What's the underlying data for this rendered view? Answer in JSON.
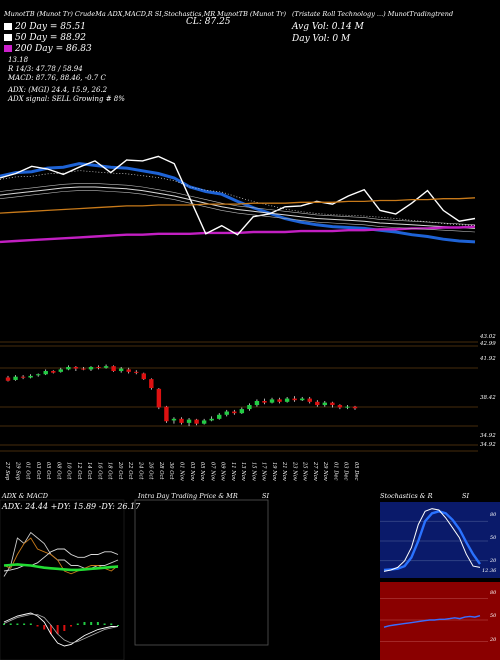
{
  "header": {
    "top_line": "MunotTB (Munot Tr) CrudeMa ADX,MACD,R SI,Stochastics,MR  MunotTB (Munot Tr)",
    "close_label": "CL: 87.25",
    "title_right": "(Tristate  Roll Technology  ...) MunotTradingtrend",
    "legend": [
      {
        "label": "20  Day = 85.51",
        "color": "#ffffff"
      },
      {
        "label": "50  Day = 88.92",
        "color": "#ffffff"
      },
      {
        "label": "200  Day = 86.83",
        "color": "#cc22cc"
      }
    ],
    "stats": [
      "13.18",
      "R  14/3: 47.78  / 58.94",
      "MACD: 87.76,  88.46,  -0.7 C"
    ],
    "adx_line": "ADX:                         (MGI) 24.4,  15.9,  26.2",
    "signal_line": "ADX  signal: SELL Growing # 8%",
    "avg_vol": "Avg Vol: 0.14   M",
    "day_vol": "Day Vol: 0    M"
  },
  "price_levels": [
    "43.02",
    "42.99",
    "41.92",
    "38.42",
    "34.92",
    "34.92"
  ],
  "date_labels": [
    "27 Sep",
    "29 Sep",
    "01 Oct",
    "03 Oct",
    "05 Oct",
    "08 Oct",
    "10 Oct",
    "12 Oct",
    "14 Oct",
    "16 Oct",
    "18 Oct",
    "20 Oct",
    "22 Oct",
    "24 Oct",
    "26 Oct",
    "28 Oct",
    "30 Oct",
    "01 Nov",
    "03 Nov",
    "05 Nov",
    "07 Nov",
    "09 Nov",
    "11 Nov",
    "13 Nov",
    "15 Nov",
    "17 Nov",
    "19 Nov",
    "21 Nov",
    "23 Nov",
    "25 Nov",
    "27 Nov",
    "29 Nov",
    "01 Dec",
    "03 Dec",
    "05 Dec"
  ],
  "panels": {
    "adx_title": "ADX  & MACD",
    "adx_readout": "ADX: 24.44  +DY: 15.89  -DY: 26.17",
    "intra_title": "Intra  Day Trading Price  & MR",
    "si_title": "SI",
    "stoch_title": "Stochastics & R",
    "si2_title": "SI",
    "stoch_ticks": [
      "80",
      "50",
      "20"
    ],
    "stoch_value": "12.36",
    "rsi_ticks": [
      "80",
      "50",
      "20"
    ]
  },
  "chart_data": [
    {
      "type": "line",
      "title": "Moving averages and price",
      "series": [
        {
          "name": "20 Day",
          "values": [
            3.2,
            3.6,
            3.7,
            4.1,
            4.2,
            4.6,
            4.4,
            4.2,
            4.1,
            3.8,
            3.5,
            3.0,
            2.0,
            1.5,
            1.2,
            0.4,
            -0.3,
            -0.9,
            -1.5,
            -1.9,
            -2.2,
            -2.4,
            -2.5,
            -2.6,
            -2.8,
            -3.0,
            -3.3,
            -3.5,
            -3.8,
            -4.0,
            -4.1
          ]
        },
        {
          "name": "50 Day",
          "values": [
            1.1,
            1.3,
            1.5,
            1.7,
            1.9,
            2.0,
            2.0,
            1.9,
            1.8,
            1.6,
            1.3,
            1.0,
            0.6,
            0.2,
            -0.2,
            -0.5,
            -0.7,
            -0.9,
            -1.1,
            -1.3,
            -1.5,
            -1.6,
            -1.7,
            -1.8,
            -2.0,
            -2.1,
            -2.2,
            -2.3,
            -2.4,
            -2.5,
            -2.6
          ]
        },
        {
          "name": "200 Day",
          "values": [
            -4.1,
            -4.0,
            -3.9,
            -3.8,
            -3.7,
            -3.6,
            -3.5,
            -3.4,
            -3.3,
            -3.3,
            -3.2,
            -3.2,
            -3.2,
            -3.1,
            -3.1,
            -3.1,
            -3.0,
            -3.0,
            -3.0,
            -2.9,
            -2.9,
            -2.9,
            -2.8,
            -2.8,
            -2.7,
            -2.7,
            -2.6,
            -2.6,
            -2.5,
            -2.5,
            -2.4
          ]
        },
        {
          "name": "Price",
          "values": [
            3.0,
            3.5,
            4.3,
            4.0,
            3.4,
            4.2,
            4.9,
            3.6,
            5.0,
            4.9,
            5.4,
            4.6,
            0.7,
            -3.2,
            -2.3,
            -3.3,
            -1.3,
            -1.0,
            -0.2,
            -0.1,
            0.4,
            0.1,
            1.0,
            1.7,
            -0.6,
            -1.0,
            0.2,
            1.6,
            -0.6,
            -1.8,
            -1.5
          ]
        }
      ]
    },
    {
      "type": "bar",
      "title": "Candles",
      "candles": [
        [
          41.5,
          41.1,
          41.7,
          41.0
        ],
        [
          41.2,
          41.6,
          41.8,
          41.1
        ],
        [
          41.6,
          41.5,
          41.8,
          41.3
        ],
        [
          41.5,
          41.7,
          41.9,
          41.4
        ],
        [
          41.8,
          41.9,
          42.0,
          41.6
        ],
        [
          41.9,
          42.3,
          42.5,
          41.8
        ],
        [
          42.3,
          42.1,
          42.4,
          42.0
        ],
        [
          42.2,
          42.5,
          42.7,
          42.1
        ],
        [
          42.5,
          42.8,
          43.0,
          42.4
        ],
        [
          42.8,
          42.6,
          42.9,
          42.3
        ],
        [
          42.6,
          42.5,
          42.8,
          42.4
        ],
        [
          42.5,
          42.8,
          42.9,
          42.3
        ],
        [
          42.8,
          42.7,
          43.0,
          42.5
        ],
        [
          42.7,
          42.9,
          43.1,
          42.6
        ],
        [
          42.9,
          42.3,
          43.0,
          42.2
        ],
        [
          42.3,
          42.6,
          42.8,
          42.1
        ],
        [
          42.5,
          42.2,
          42.7,
          42.0
        ],
        [
          42.2,
          42.1,
          42.4,
          41.9
        ],
        [
          42.0,
          41.3,
          42.1,
          41.2
        ],
        [
          41.3,
          40.2,
          41.4,
          40.0
        ],
        [
          40.1,
          37.8,
          40.2,
          37.6
        ],
        [
          37.9,
          36.1,
          38.0,
          35.9
        ],
        [
          36.2,
          36.4,
          36.6,
          35.8
        ],
        [
          36.4,
          35.9,
          36.6,
          35.7
        ],
        [
          35.9,
          36.3,
          36.5,
          35.5
        ],
        [
          36.3,
          35.8,
          36.4,
          35.6
        ],
        [
          35.8,
          36.2,
          36.4,
          35.7
        ],
        [
          36.2,
          36.4,
          36.7,
          36.1
        ],
        [
          36.4,
          36.9,
          37.1,
          36.3
        ],
        [
          36.9,
          37.3,
          37.5,
          36.7
        ],
        [
          37.3,
          37.1,
          37.5,
          36.9
        ],
        [
          37.1,
          37.6,
          37.8,
          37.0
        ],
        [
          37.6,
          38.1,
          38.3,
          37.4
        ],
        [
          38.1,
          38.6,
          38.8,
          37.9
        ],
        [
          38.6,
          38.4,
          38.9,
          38.2
        ],
        [
          38.4,
          38.8,
          39.0,
          38.3
        ],
        [
          38.8,
          38.5,
          39.0,
          38.3
        ],
        [
          38.5,
          38.9,
          39.1,
          38.4
        ],
        [
          38.9,
          38.7,
          39.2,
          38.5
        ],
        [
          38.7,
          38.9,
          39.1,
          38.6
        ],
        [
          38.9,
          38.5,
          39.1,
          38.3
        ],
        [
          38.5,
          38.1,
          38.7,
          37.9
        ],
        [
          38.1,
          38.4,
          38.6,
          37.9
        ],
        [
          38.4,
          38.1,
          38.5,
          37.8
        ],
        [
          38.1,
          37.8,
          38.2,
          37.6
        ],
        [
          37.8,
          37.9,
          38.1,
          37.6
        ],
        [
          37.9,
          37.7,
          38.0,
          37.5
        ]
      ]
    },
    {
      "type": "line",
      "title": "ADX",
      "series": [
        {
          "name": "ADX",
          "values": [
            0.1,
            0.3,
            0.8,
            0.7,
            0.9,
            0.8,
            0.7,
            0.5,
            0.4,
            0.4,
            0.3,
            0.3,
            0.25,
            0.25,
            0.3,
            0.3,
            0.35,
            0.4
          ]
        },
        {
          "name": "+DY",
          "values": [
            0.3,
            0.25,
            0.5,
            0.7,
            0.8,
            0.6,
            0.55,
            0.5,
            0.4,
            0.2,
            0.15,
            0.2,
            0.25,
            0.3,
            0.3,
            0.25,
            0.2,
            0.3
          ]
        },
        {
          "name": "-DY",
          "values": [
            0.2,
            0.22,
            0.25,
            0.3,
            0.3,
            0.35,
            0.45,
            0.55,
            0.6,
            0.6,
            0.5,
            0.45,
            0.45,
            0.5,
            0.5,
            0.55,
            0.55,
            0.5
          ]
        }
      ]
    },
    {
      "type": "line",
      "title": "MACD",
      "series": [
        {
          "name": "MACD",
          "values": [
            0.1,
            0.2,
            0.3,
            0.35,
            0.4,
            0.3,
            0.1,
            -0.3,
            -0.6,
            -0.7,
            -0.65,
            -0.5,
            -0.35,
            -0.25,
            -0.15,
            -0.1,
            -0.05,
            -0.05
          ]
        },
        {
          "name": "Signal",
          "values": [
            0.05,
            0.15,
            0.25,
            0.3,
            0.35,
            0.35,
            0.25,
            0.0,
            -0.3,
            -0.5,
            -0.6,
            -0.55,
            -0.45,
            -0.35,
            -0.25,
            -0.15,
            -0.1,
            -0.05
          ]
        },
        {
          "name": "Histogram",
          "values": [
            0.05,
            0.05,
            0.05,
            0.05,
            0.05,
            -0.05,
            -0.15,
            -0.3,
            -0.3,
            -0.2,
            -0.05,
            0.05,
            0.1,
            0.1,
            0.1,
            0.05,
            0.05,
            0.0
          ]
        }
      ]
    },
    {
      "type": "line",
      "title": "Stochastics",
      "ylim": [
        0,
        100
      ],
      "series": [
        {
          "name": "%K",
          "values": [
            4,
            6,
            10,
            20,
            40,
            75,
            95,
            99,
            97,
            85,
            70,
            55,
            30,
            12,
            10
          ]
        },
        {
          "name": "%D",
          "values": [
            6,
            7,
            8,
            12,
            25,
            50,
            80,
            92,
            95,
            92,
            82,
            68,
            48,
            30,
            15
          ]
        }
      ]
    },
    {
      "type": "line",
      "title": "RSI",
      "ylim": [
        0,
        100
      ],
      "series": [
        {
          "name": "RSI",
          "values": [
            40,
            42,
            43,
            44,
            45,
            46,
            47,
            48,
            49,
            50,
            50,
            51,
            51,
            52,
            53,
            52,
            54,
            55,
            54,
            56
          ]
        }
      ]
    }
  ]
}
